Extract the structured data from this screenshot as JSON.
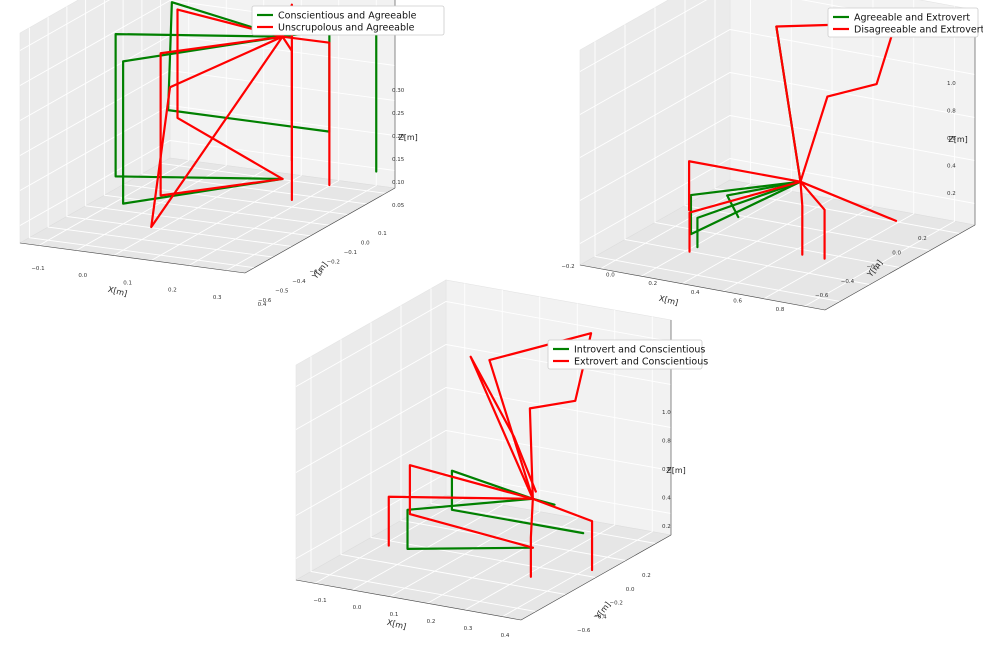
{
  "chart_data": [
    {
      "type": "line",
      "projection": "3d",
      "xlabel": "X[m]",
      "ylabel": "Y[m]",
      "zlabel": "Z[m]",
      "x_ticks": [
        "−0.1",
        "0.0",
        "0.1",
        "0.2",
        "0.3",
        "0.4"
      ],
      "y_ticks": [
        "0.1",
        "0.0",
        "−0.1",
        "−0.2",
        "−0.3",
        "−0.4",
        "−0.5",
        "−0.6"
      ],
      "z_ticks": [
        "0.05",
        "0.10",
        "0.15",
        "0.20",
        "0.25",
        "0.30"
      ],
      "xlim": [
        -0.15,
        0.45
      ],
      "ylim": [
        -0.65,
        0.15
      ],
      "zlim": [
        0.02,
        0.33
      ],
      "grid": true,
      "legend_position": "top-center",
      "colors": {
        "green": "#008000",
        "red": "#ff0000"
      },
      "series": [
        {
          "name": "Conscientious and Agreeable",
          "color": "#008000",
          "trajectories": [
            [
              [
                0.25,
                -0.05,
                0.26
              ],
              [
                -0.12,
                0.1,
                0.26
              ],
              [
                -0.13,
                0.1,
                0.1
              ],
              [
                0.3,
                0.1,
                0.1
              ],
              [
                0.3,
                0.1,
                0.28
              ],
              [
                0.25,
                -0.05,
                0.26
              ]
            ],
            [
              [
                0.25,
                -0.05,
                0.26
              ],
              [
                -0.12,
                -0.2,
                0.26
              ],
              [
                -0.12,
                -0.2,
                0.05
              ],
              [
                0.25,
                -0.05,
                0.05
              ]
            ],
            [
              [
                0.25,
                -0.05,
                0.26
              ],
              [
                0.0,
                -0.4,
                0.26
              ],
              [
                0.0,
                -0.4,
                0.05
              ],
              [
                0.25,
                -0.05,
                0.05
              ]
            ],
            [
              [
                0.25,
                -0.05,
                0.26
              ],
              [
                0.45,
                0.05,
                0.28
              ],
              [
                0.45,
                0.05,
                0.06
              ]
            ]
          ]
        },
        {
          "name": "Unscrupolous and Agreeable",
          "color": "#ff0000",
          "trajectories": [
            [
              [
                0.25,
                -0.05,
                0.26
              ],
              [
                -0.08,
                0.05,
                0.26
              ],
              [
                -0.08,
                0.05,
                0.1
              ],
              [
                0.25,
                -0.05,
                0.05
              ]
            ],
            [
              [
                0.25,
                -0.05,
                0.26
              ],
              [
                0.05,
                -0.3,
                0.26
              ],
              [
                0.05,
                -0.3,
                0.05
              ],
              [
                0.25,
                -0.05,
                0.05
              ]
            ],
            [
              [
                0.25,
                -0.05,
                0.26
              ],
              [
                0.2,
                -0.55,
                0.26
              ],
              [
                0.15,
                -0.55,
                0.05
              ],
              [
                0.25,
                -0.05,
                0.26
              ]
            ],
            [
              [
                0.25,
                -0.05,
                0.26
              ],
              [
                0.35,
                -0.2,
                0.27
              ],
              [
                0.35,
                -0.2,
                0.05
              ]
            ],
            [
              [
                0.25,
                -0.05,
                0.26
              ],
              [
                0.4,
                -0.1,
                0.27
              ],
              [
                0.4,
                -0.1,
                0.06
              ]
            ],
            [
              [
                0.25,
                -0.05,
                0.26
              ],
              [
                0.2,
                0.1,
                0.28
              ],
              [
                0.2,
                0.1,
                0.05
              ]
            ]
          ]
        }
      ]
    },
    {
      "type": "line",
      "projection": "3d",
      "xlabel": "X[m]",
      "ylabel": "Y[m]",
      "zlabel": "Z[m]",
      "x_ticks": [
        "−0.2",
        "0.0",
        "0.2",
        "0.4",
        "0.6",
        "0.8"
      ],
      "y_ticks": [
        "0.2",
        "0.0",
        "−0.2",
        "−0.4",
        "−0.6"
      ],
      "z_ticks": [
        "0.2",
        "0.4",
        "0.6",
        "0.8",
        "1.0"
      ],
      "xlim": [
        -0.25,
        0.85
      ],
      "ylim": [
        -0.65,
        0.3
      ],
      "zlim": [
        0.0,
        1.1
      ],
      "grid": true,
      "legend_position": "top-right",
      "colors": {
        "green": "#008000",
        "red": "#ff0000"
      },
      "series": [
        {
          "name": "Agreeable and Extrovert",
          "color": "#008000",
          "trajectories": [
            [
              [
                0.35,
                -0.1,
                0.3
              ],
              [
                0.1,
                0.1,
                0.95
              ],
              [
                0.35,
                -0.1,
                0.3
              ],
              [
                -0.05,
                0.0,
                0.1
              ],
              [
                0.0,
                0.0,
                0.0
              ]
            ],
            [
              [
                0.35,
                -0.1,
                0.3
              ],
              [
                0.0,
                -0.3,
                0.25
              ],
              [
                0.0,
                -0.3,
                0.05
              ],
              [
                0.35,
                -0.1,
                0.3
              ]
            ],
            [
              [
                0.35,
                -0.1,
                0.3
              ],
              [
                0.1,
                -0.4,
                0.2
              ],
              [
                0.1,
                -0.4,
                0.05
              ]
            ]
          ]
        },
        {
          "name": "Disagreeable and Extrovert",
          "color": "#ff0000",
          "trajectories": [
            [
              [
                0.35,
                -0.1,
                0.3
              ],
              [
                0.1,
                0.1,
                0.95
              ],
              [
                0.6,
                0.15,
                1.05
              ],
              [
                0.55,
                0.1,
                0.75
              ],
              [
                0.4,
                0.0,
                0.7
              ],
              [
                0.35,
                -0.1,
                0.3
              ]
            ],
            [
              [
                0.35,
                -0.1,
                0.3
              ],
              [
                -0.15,
                -0.1,
                0.3
              ],
              [
                -0.15,
                -0.1,
                0.05
              ]
            ],
            [
              [
                0.35,
                -0.1,
                0.3
              ],
              [
                0.85,
                -0.2,
                0.25
              ]
            ],
            [
              [
                0.35,
                -0.1,
                0.3
              ],
              [
                0.5,
                -0.3,
                0.3
              ],
              [
                0.5,
                -0.3,
                0.05
              ]
            ],
            [
              [
                0.35,
                -0.1,
                0.3
              ],
              [
                0.6,
                -0.3,
                0.3
              ],
              [
                0.6,
                -0.3,
                0.05
              ]
            ],
            [
              [
                0.35,
                -0.1,
                0.3
              ],
              [
                0.1,
                -0.45,
                0.25
              ],
              [
                0.1,
                -0.45,
                0.05
              ]
            ]
          ]
        }
      ]
    },
    {
      "type": "line",
      "projection": "3d",
      "xlabel": "X[m]",
      "ylabel": "Y[m]",
      "zlabel": "Z[m]",
      "x_ticks": [
        "−0.1",
        "0.0",
        "0.1",
        "0.2",
        "0.3",
        "0.4"
      ],
      "y_ticks": [
        "0.2",
        "0.0",
        "−0.2",
        "−0.4",
        "−0.6"
      ],
      "z_ticks": [
        "0.2",
        "0.4",
        "0.6",
        "0.8",
        "1.0"
      ],
      "xlim": [
        -0.15,
        0.45
      ],
      "ylim": [
        -0.65,
        0.3
      ],
      "zlim": [
        0.0,
        1.1
      ],
      "grid": true,
      "legend_position": "top-center",
      "colors": {
        "green": "#008000",
        "red": "#ff0000"
      },
      "series": [
        {
          "name": "Introvert and Conscientious",
          "color": "#008000",
          "trajectories": [
            [
              [
                0.25,
                -0.1,
                0.3
              ],
              [
                -0.05,
                0.1,
                0.25
              ],
              [
                -0.05,
                0.1,
                0.05
              ],
              [
                0.3,
                0.1,
                0.05
              ]
            ],
            [
              [
                0.25,
                -0.1,
                0.3
              ],
              [
                0.0,
                -0.3,
                0.25
              ],
              [
                0.0,
                -0.3,
                0.05
              ],
              [
                0.25,
                -0.1,
                0.05
              ]
            ],
            [
              [
                0.25,
                -0.1,
                0.3
              ],
              [
                0.35,
                -0.2,
                0.35
              ]
            ]
          ]
        },
        {
          "name": "Extrovert and Conscientious",
          "color": "#ff0000",
          "trajectories": [
            [
              [
                0.25,
                -0.1,
                0.3
              ],
              [
                0.05,
                0.1,
                0.85
              ],
              [
                0.3,
                0.15,
                1.05
              ],
              [
                0.3,
                0.05,
                0.75
              ],
              [
                0.2,
                0.0,
                0.7
              ],
              [
                0.25,
                -0.1,
                0.3
              ]
            ],
            [
              [
                0.25,
                -0.1,
                0.3
              ],
              [
                0.0,
                0.1,
                0.85
              ],
              [
                0.2,
                -0.1,
                0.6
              ],
              [
                0.3,
                -0.2,
                0.4
              ]
            ],
            [
              [
                0.25,
                -0.1,
                0.3
              ],
              [
                -0.12,
                0.0,
                0.3
              ],
              [
                -0.12,
                0.0,
                0.05
              ],
              [
                0.25,
                -0.1,
                0.05
              ]
            ],
            [
              [
                0.25,
                -0.1,
                0.3
              ],
              [
                -0.05,
                -0.3,
                0.3
              ],
              [
                -0.05,
                -0.3,
                0.05
              ]
            ],
            [
              [
                0.25,
                -0.1,
                0.3
              ],
              [
                0.45,
                -0.2,
                0.3
              ],
              [
                0.45,
                -0.2,
                0.05
              ]
            ],
            [
              [
                0.25,
                -0.1,
                0.3
              ],
              [
                0.35,
                -0.35,
                0.25
              ],
              [
                0.35,
                -0.35,
                0.05
              ]
            ]
          ]
        }
      ]
    }
  ]
}
